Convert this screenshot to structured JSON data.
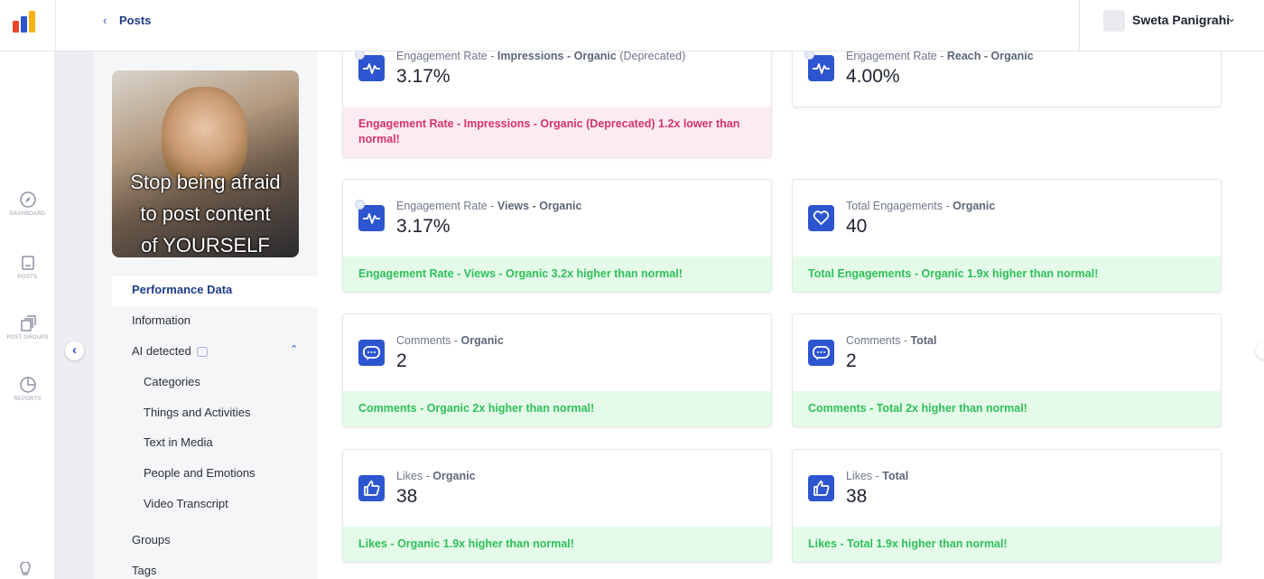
{
  "header": {
    "back_label": "Posts",
    "user_name": "Sweta Panigrahi"
  },
  "nav": [
    "DASHBOARD",
    "POSTS",
    "POST GROUPS",
    "REPORTS"
  ],
  "post_image": {
    "caption_lines": [
      "Stop being afraid",
      "to post content",
      "of YOURSELF"
    ]
  },
  "menu": {
    "items": [
      "Performance Data",
      "Information",
      "AI detected"
    ],
    "ai_subitems": [
      "Categories",
      "Things and Activities",
      "Text in Media",
      "People and Emotions",
      "Video Transcript"
    ],
    "bottom_items": [
      "Groups",
      "Tags"
    ]
  },
  "cards": [
    {
      "icon": "pulse",
      "title": [
        {
          "text": "Engagement Rate - "
        },
        {
          "text": "Impressions - Organic",
          "bold": true
        },
        {
          "text": " (Deprecated)"
        }
      ],
      "value": "3.17%",
      "alert": "Engagement Rate - Impressions - Organic (Deprecated) 1.2x lower than normal!",
      "tone": "negative"
    },
    {
      "icon": "pulse",
      "title": [
        {
          "text": "Engagement Rate - "
        },
        {
          "text": "Reach - Organic",
          "bold": true
        }
      ],
      "value": "4.00%"
    },
    {
      "icon": "pulse",
      "title": [
        {
          "text": "Engagement Rate - "
        },
        {
          "text": "Views - Organic",
          "bold": true
        }
      ],
      "value": "3.17%",
      "alert": "Engagement Rate - Views - Organic 3.2x higher than normal!",
      "tone": "positive"
    },
    {
      "icon": "heart",
      "title": [
        {
          "text": "Total Engagements - "
        },
        {
          "text": "Organic",
          "bold": true
        }
      ],
      "value": "40",
      "alert": "Total Engagements - Organic 1.9x higher than normal!",
      "tone": "positive"
    },
    {
      "icon": "comment",
      "title": [
        {
          "text": "Comments - "
        },
        {
          "text": "Organic",
          "bold": true
        }
      ],
      "value": "2",
      "alert": "Comments - Organic 2x higher than normal!",
      "tone": "positive"
    },
    {
      "icon": "comment",
      "title": [
        {
          "text": "Comments - "
        },
        {
          "text": "Total",
          "bold": true
        }
      ],
      "value": "2",
      "alert": "Comments - Total 2x higher than normal!",
      "tone": "positive"
    },
    {
      "icon": "like",
      "title": [
        {
          "text": "Likes - "
        },
        {
          "text": "Organic",
          "bold": true
        }
      ],
      "value": "38",
      "alert": "Likes - Organic 1.9x higher than normal!",
      "tone": "positive"
    },
    {
      "icon": "like",
      "title": [
        {
          "text": "Likes - "
        },
        {
          "text": "Total",
          "bold": true
        }
      ],
      "value": "38",
      "alert": "Likes - Total 1.9x higher than normal!",
      "tone": "positive"
    }
  ]
}
